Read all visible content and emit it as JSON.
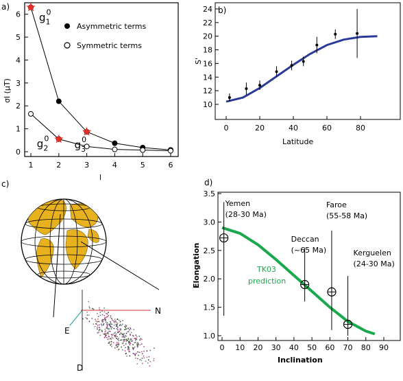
{
  "panel_labels": [
    "a)",
    "b)",
    "c)",
    "d)"
  ],
  "chart_data": [
    {
      "id": "a",
      "type": "scatter",
      "xlabel": "l",
      "ylabel": "σl (μT)",
      "xlim": [
        1,
        6
      ],
      "ylim": [
        0,
        6.5
      ],
      "xticks": [
        1,
        2,
        3,
        4,
        5,
        6
      ],
      "yticks": [
        0,
        1,
        2,
        3,
        4,
        5,
        6
      ],
      "legend_position": "top-right",
      "series": [
        {
          "name": "Asymmetric terms",
          "marker": "filled-circle",
          "x": [
            1,
            2,
            3,
            4,
            5,
            6
          ],
          "y": [
            6.3,
            2.2,
            0.87,
            0.37,
            0.18,
            0.08
          ]
        },
        {
          "name": "Symmetric terms",
          "marker": "open-circle",
          "x": [
            1,
            2,
            3,
            4,
            5,
            6
          ],
          "y": [
            1.65,
            0.55,
            0.23,
            0.1,
            0.07,
            0.04
          ]
        }
      ],
      "highlights": [
        {
          "label": "g10",
          "base": "g",
          "sub": "1",
          "sup": "0",
          "x": 1,
          "y": 6.3,
          "color": "#e8302a"
        },
        {
          "label": "g20",
          "base": "g",
          "sub": "2",
          "sup": "0",
          "x": 2,
          "y": 0.55,
          "color": "#e8302a"
        },
        {
          "label": "g30",
          "base": "g",
          "sub": "3",
          "sup": "0",
          "x": 3,
          "y": 0.87,
          "color": "#e8302a"
        }
      ]
    },
    {
      "id": "b",
      "type": "scatter",
      "xlabel": "Latitude",
      "ylabel": "S'",
      "xlim": [
        -5,
        95
      ],
      "ylim": [
        8.5,
        25
      ],
      "xticks": [
        0,
        20,
        40,
        60,
        80
      ],
      "yticks": [
        10,
        12,
        14,
        16,
        18,
        20,
        22,
        24
      ],
      "points": [
        {
          "x": 2,
          "y": 11.0,
          "err": 0.6
        },
        {
          "x": 12,
          "y": 12.3,
          "err": 0.9
        },
        {
          "x": 20,
          "y": 12.8,
          "err": 0.7
        },
        {
          "x": 30,
          "y": 14.8,
          "err": 0.8
        },
        {
          "x": 39,
          "y": 15.7,
          "err": 0.7
        },
        {
          "x": 46,
          "y": 16.3,
          "err": 0.7
        },
        {
          "x": 54,
          "y": 18.7,
          "err": 1.2
        },
        {
          "x": 65,
          "y": 20.3,
          "err": 0.7
        },
        {
          "x": 78,
          "y": 20.4,
          "err": 3.6
        }
      ],
      "curve": {
        "color": "#2b3a9a",
        "x": [
          0,
          10,
          20,
          30,
          40,
          50,
          60,
          70,
          80,
          90
        ],
        "y": [
          10.4,
          11.0,
          12.4,
          14.1,
          15.8,
          17.4,
          18.7,
          19.5,
          19.9,
          20.0
        ]
      }
    },
    {
      "id": "c",
      "type": "scatter",
      "direction_labels": {
        "north": "N",
        "east": "E",
        "down": "D"
      }
    },
    {
      "id": "d",
      "type": "scatter",
      "xlabel": "Inclination",
      "ylabel": "Elongation",
      "xlim": [
        0,
        90
      ],
      "ylim": [
        1.0,
        3.5
      ],
      "xticks": [
        0,
        10,
        20,
        30,
        40,
        50,
        60,
        70,
        80,
        90
      ],
      "yticks": [
        1.0,
        1.5,
        2.0,
        2.5,
        3.0,
        3.5
      ],
      "curve": {
        "name": "TK03 prediction",
        "color": "#1aa84d",
        "x": [
          0,
          10,
          20,
          30,
          40,
          50,
          60,
          70,
          80,
          85
        ],
        "y": [
          2.9,
          2.8,
          2.6,
          2.34,
          2.06,
          1.78,
          1.5,
          1.25,
          1.08,
          1.03
        ]
      },
      "annotation": {
        "lines": [
          "TK03",
          "prediction"
        ],
        "color": "#1aa84d"
      },
      "points": [
        {
          "x": 1,
          "y": 2.72,
          "label": [
            "Yemen",
            "(28-30 Ma)"
          ],
          "err_low": 1.35,
          "err_high": 3.35
        },
        {
          "x": 46,
          "y": 1.9,
          "label": [
            "Deccan",
            "(~65 Ma)"
          ],
          "err_low": 1.6,
          "err_high": 2.55
        },
        {
          "x": 61,
          "y": 1.77,
          "label": [
            "Faroe",
            "(55-58 Ma)"
          ],
          "err_low": 1.1,
          "err_high": 2.85
        },
        {
          "x": 70,
          "y": 1.2,
          "label": [
            "Kerguelen",
            "(24-30 Ma)"
          ],
          "err_low": 1.0,
          "err_high": 2.05
        }
      ]
    }
  ]
}
